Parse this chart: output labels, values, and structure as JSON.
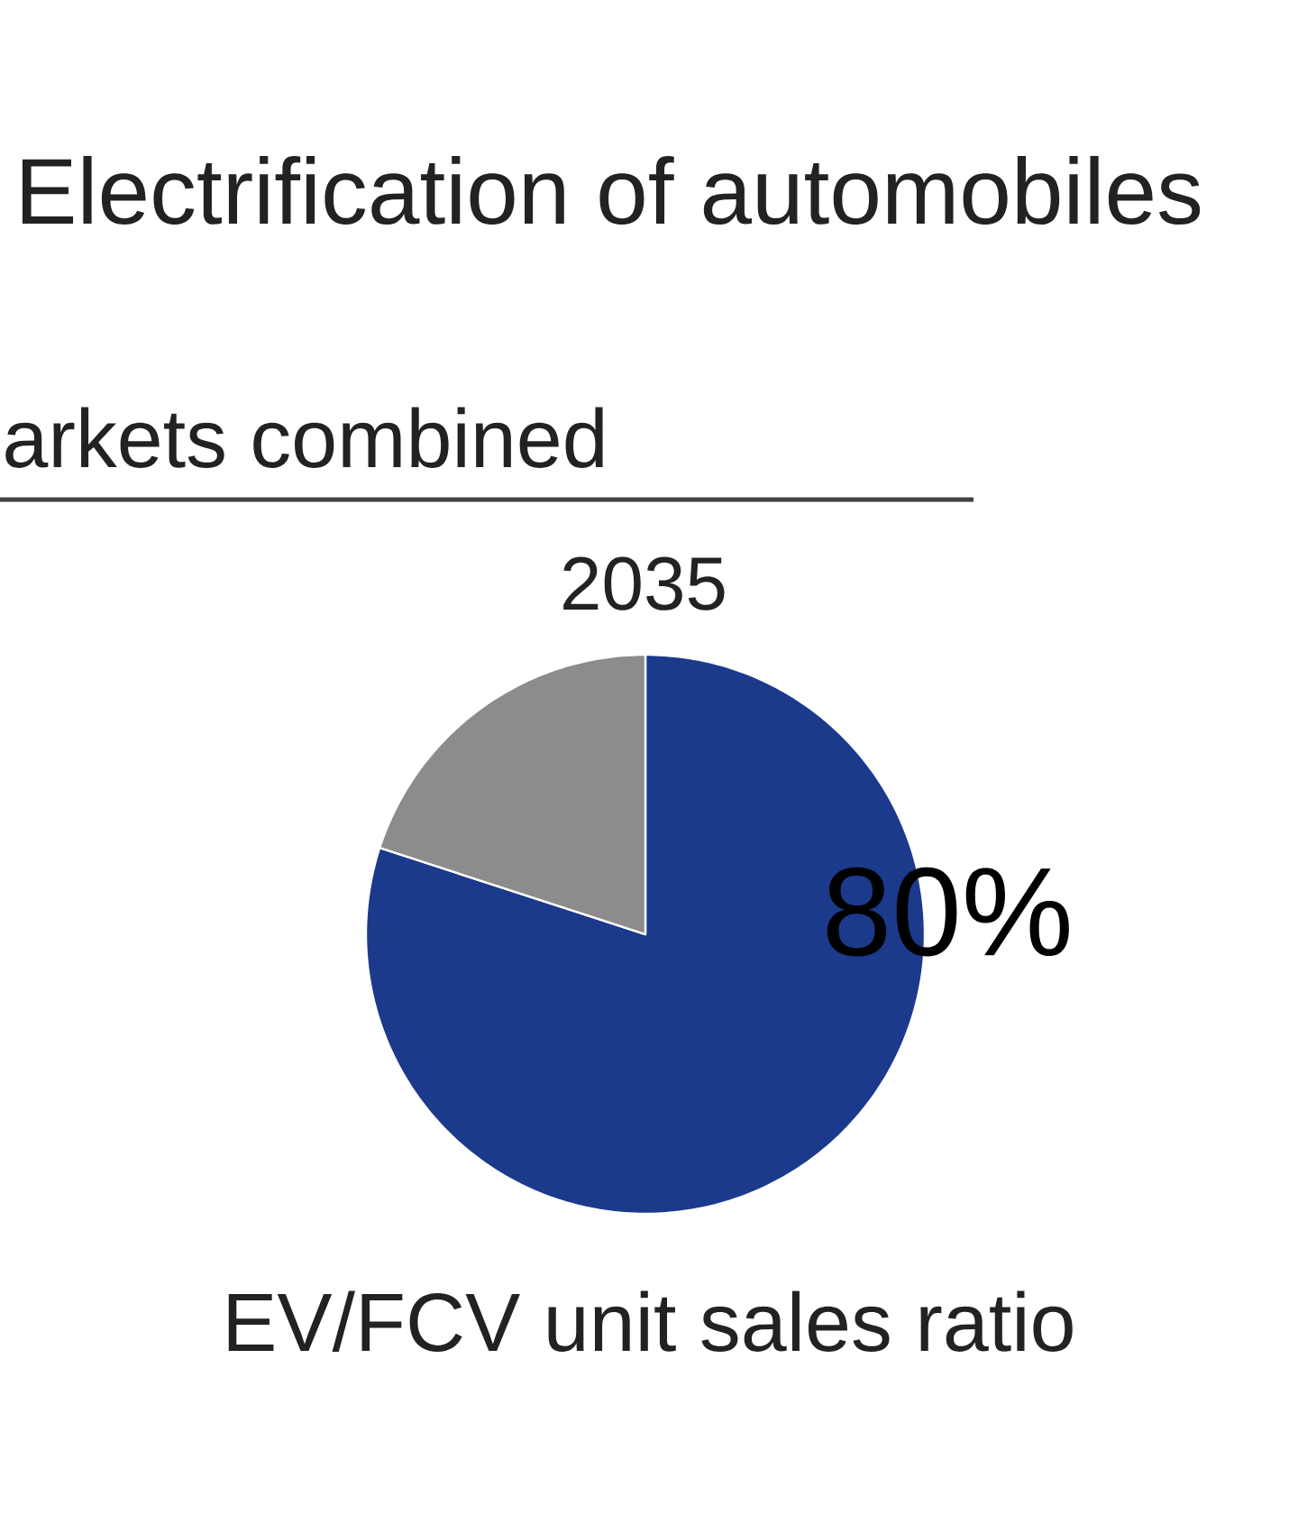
{
  "chart_data": {
    "type": "pie",
    "title": "Electrification of automobiles",
    "subtitle": "arkets combined",
    "annotations": [
      "2035"
    ],
    "xlabel": "EV/FCV unit sales ratio",
    "categories": [
      null,
      null
    ],
    "values": [
      80,
      20
    ],
    "colors": [
      "#1b3a8c",
      "#8c8c8c"
    ],
    "value_labels": [
      "80%",
      null
    ]
  }
}
